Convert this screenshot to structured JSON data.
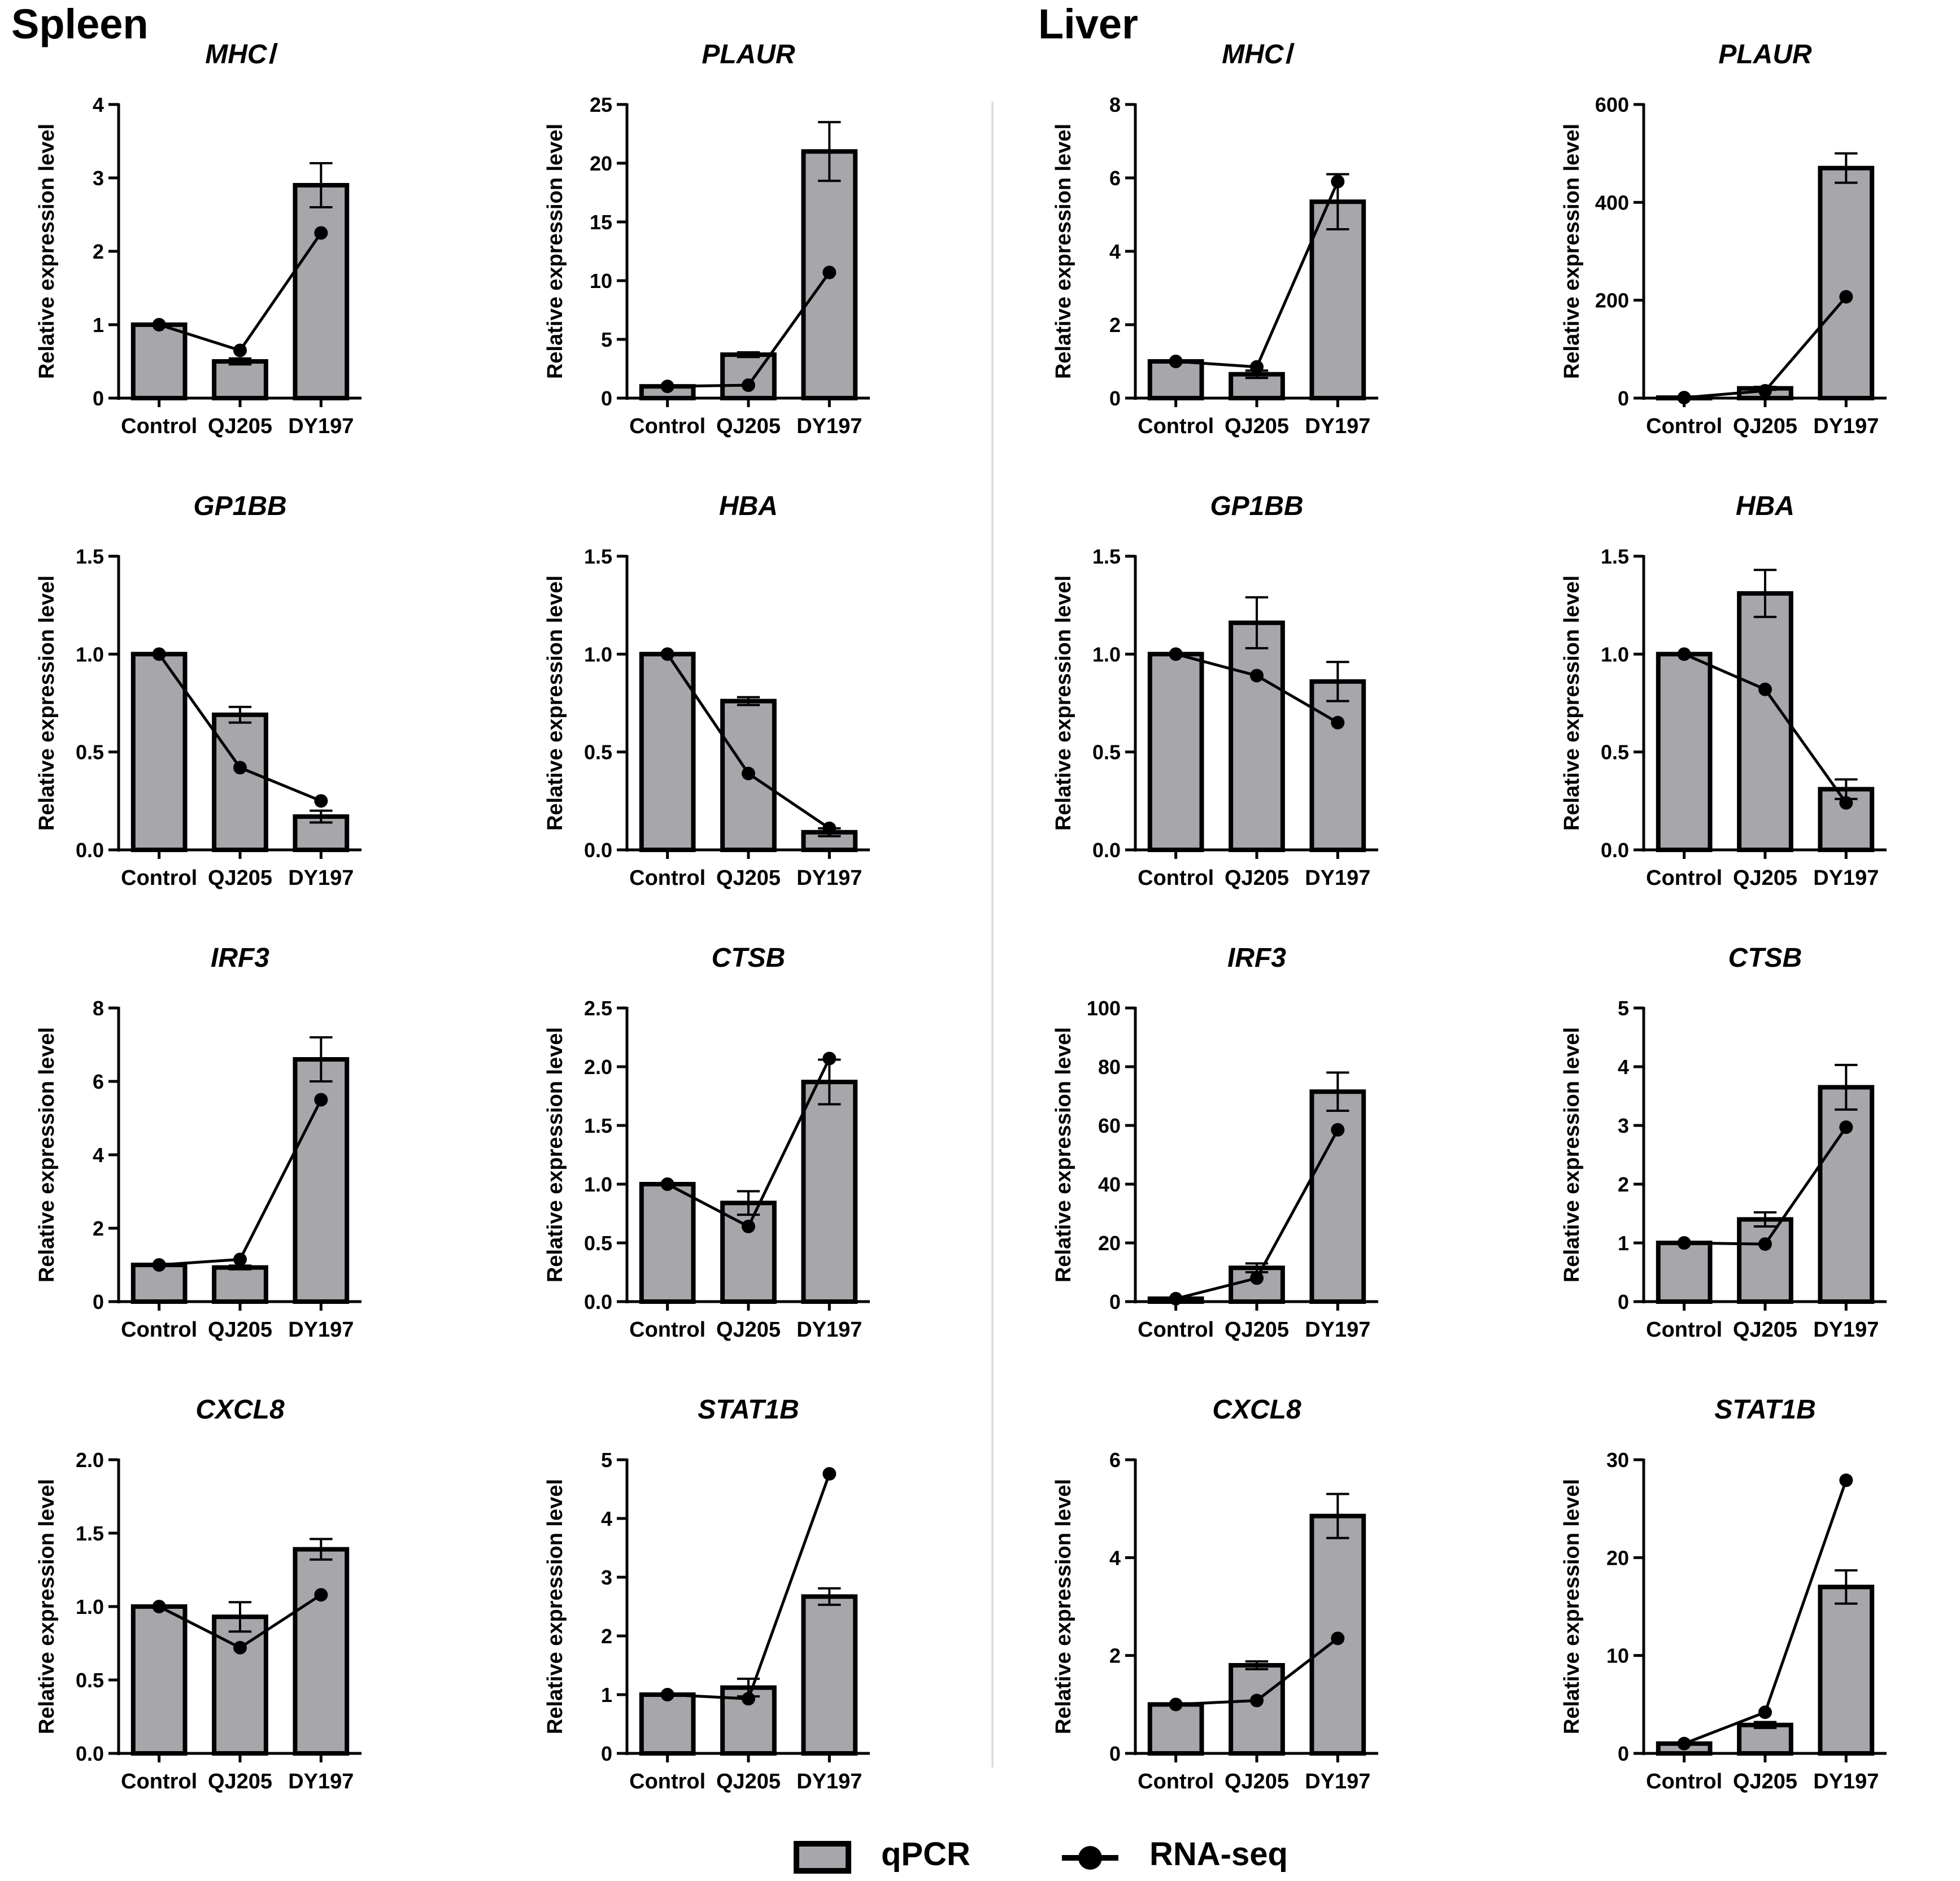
{
  "sections": [
    {
      "label": "Spleen"
    },
    {
      "label": "Liver"
    }
  ],
  "legend": {
    "qpcr_label": "qPCR",
    "rnaseq_label": "RNA-seq"
  },
  "colors": {
    "bar_fill": "#a6a6ab",
    "bar_stroke": "#000000",
    "line": "#000000",
    "text": "#000000",
    "divider": "#d0d0d0"
  },
  "chart_data": [
    {
      "type": "bar",
      "section": "Spleen",
      "title": "MHCⅠ",
      "ylabel": "Relative expression level",
      "categories": [
        "Control",
        "QJ205",
        "DY197"
      ],
      "ylim": [
        0,
        4
      ],
      "yticks": [
        "0",
        "1",
        "2",
        "3",
        "4"
      ],
      "series": [
        {
          "name": "qPCR",
          "type": "bar",
          "values": [
            1.0,
            0.5,
            2.9
          ],
          "errors": [
            0,
            0.04,
            0.3
          ]
        },
        {
          "name": "RNA-seq",
          "type": "line",
          "values": [
            1.0,
            0.65,
            2.25
          ]
        }
      ]
    },
    {
      "type": "bar",
      "section": "Spleen",
      "title": "PLAUR",
      "ylabel": "Relative expression level",
      "categories": [
        "Control",
        "QJ205",
        "DY197"
      ],
      "ylim": [
        0,
        25
      ],
      "yticks": [
        "0",
        "5",
        "10",
        "15",
        "20",
        "25"
      ],
      "series": [
        {
          "name": "qPCR",
          "type": "bar",
          "values": [
            1.0,
            3.7,
            21.0
          ],
          "errors": [
            0,
            0.2,
            2.5
          ]
        },
        {
          "name": "RNA-seq",
          "type": "line",
          "values": [
            1.0,
            1.1,
            10.7
          ]
        }
      ]
    },
    {
      "type": "bar",
      "section": "Liver",
      "title": "MHCⅠ",
      "ylabel": "Relative expression level",
      "categories": [
        "Control",
        "QJ205",
        "DY197"
      ],
      "ylim": [
        0,
        8
      ],
      "yticks": [
        "0",
        "2",
        "4",
        "6",
        "8"
      ],
      "series": [
        {
          "name": "qPCR",
          "type": "bar",
          "values": [
            1.0,
            0.65,
            5.35
          ],
          "errors": [
            0,
            0.1,
            0.75
          ]
        },
        {
          "name": "RNA-seq",
          "type": "line",
          "values": [
            1.0,
            0.85,
            5.9
          ]
        }
      ]
    },
    {
      "type": "bar",
      "section": "Liver",
      "title": "PLAUR",
      "ylabel": "Relative expression level",
      "categories": [
        "Control",
        "QJ205",
        "DY197"
      ],
      "ylim": [
        0,
        600
      ],
      "yticks": [
        "0",
        "200",
        "400",
        "600"
      ],
      "series": [
        {
          "name": "qPCR",
          "type": "bar",
          "values": [
            1.0,
            20,
            470
          ],
          "errors": [
            0,
            3,
            30
          ]
        },
        {
          "name": "RNA-seq",
          "type": "line",
          "values": [
            1.0,
            15,
            207
          ]
        }
      ]
    },
    {
      "type": "bar",
      "section": "Spleen",
      "title": "GP1BB",
      "ylabel": "Relative expression level",
      "categories": [
        "Control",
        "QJ205",
        "DY197"
      ],
      "ylim": [
        0,
        1.5
      ],
      "yticks": [
        "0.0",
        "0.5",
        "1.0",
        "1.5"
      ],
      "series": [
        {
          "name": "qPCR",
          "type": "bar",
          "values": [
            1.0,
            0.69,
            0.17
          ],
          "errors": [
            0,
            0.04,
            0.03
          ]
        },
        {
          "name": "RNA-seq",
          "type": "line",
          "values": [
            1.0,
            0.42,
            0.25
          ]
        }
      ]
    },
    {
      "type": "bar",
      "section": "Spleen",
      "title": "HBA",
      "ylabel": "Relative expression level",
      "categories": [
        "Control",
        "QJ205",
        "DY197"
      ],
      "ylim": [
        0,
        1.5
      ],
      "yticks": [
        "0.0",
        "0.5",
        "1.0",
        "1.5"
      ],
      "series": [
        {
          "name": "qPCR",
          "type": "bar",
          "values": [
            1.0,
            0.76,
            0.09
          ],
          "errors": [
            0,
            0.02,
            0.02
          ]
        },
        {
          "name": "RNA-seq",
          "type": "line",
          "values": [
            1.0,
            0.39,
            0.11
          ]
        }
      ]
    },
    {
      "type": "bar",
      "section": "Liver",
      "title": "GP1BB",
      "ylabel": "Relative expression level",
      "categories": [
        "Control",
        "QJ205",
        "DY197"
      ],
      "ylim": [
        0,
        1.5
      ],
      "yticks": [
        "0.0",
        "0.5",
        "1.0",
        "1.5"
      ],
      "series": [
        {
          "name": "qPCR",
          "type": "bar",
          "values": [
            1.0,
            1.16,
            0.86
          ],
          "errors": [
            0,
            0.13,
            0.1
          ]
        },
        {
          "name": "RNA-seq",
          "type": "line",
          "values": [
            1.0,
            0.89,
            0.65
          ]
        }
      ]
    },
    {
      "type": "bar",
      "section": "Liver",
      "title": "HBA",
      "ylabel": "Relative expression level",
      "categories": [
        "Control",
        "QJ205",
        "DY197"
      ],
      "ylim": [
        0,
        1.5
      ],
      "yticks": [
        "0.0",
        "0.5",
        "1.0",
        "1.5"
      ],
      "series": [
        {
          "name": "qPCR",
          "type": "bar",
          "values": [
            1.0,
            1.31,
            0.31
          ],
          "errors": [
            0,
            0.12,
            0.05
          ]
        },
        {
          "name": "RNA-seq",
          "type": "line",
          "values": [
            1.0,
            0.82,
            0.24
          ]
        }
      ]
    },
    {
      "type": "bar",
      "section": "Spleen",
      "title": "IRF3",
      "ylabel": "Relative expression level",
      "categories": [
        "Control",
        "QJ205",
        "DY197"
      ],
      "ylim": [
        0,
        8
      ],
      "yticks": [
        "0",
        "2",
        "4",
        "6",
        "8"
      ],
      "series": [
        {
          "name": "qPCR",
          "type": "bar",
          "values": [
            1.0,
            0.93,
            6.6
          ],
          "errors": [
            0,
            0.05,
            0.6
          ]
        },
        {
          "name": "RNA-seq",
          "type": "line",
          "values": [
            1.0,
            1.15,
            5.5
          ]
        }
      ]
    },
    {
      "type": "bar",
      "section": "Spleen",
      "title": "CTSB",
      "ylabel": "Relative expression level",
      "categories": [
        "Control",
        "QJ205",
        "DY197"
      ],
      "ylim": [
        0,
        2.5
      ],
      "yticks": [
        "0.0",
        "0.5",
        "1.0",
        "1.5",
        "2.0",
        "2.5"
      ],
      "series": [
        {
          "name": "qPCR",
          "type": "bar",
          "values": [
            1.0,
            0.84,
            1.87
          ],
          "errors": [
            0,
            0.1,
            0.19
          ]
        },
        {
          "name": "RNA-seq",
          "type": "line",
          "values": [
            1.0,
            0.64,
            2.07
          ]
        }
      ]
    },
    {
      "type": "bar",
      "section": "Liver",
      "title": "IRF3",
      "ylabel": "Relative expression level",
      "categories": [
        "Control",
        "QJ205",
        "DY197"
      ],
      "ylim": [
        0,
        100
      ],
      "yticks": [
        "0",
        "20",
        "40",
        "60",
        "80",
        "100"
      ],
      "series": [
        {
          "name": "qPCR",
          "type": "bar",
          "values": [
            1.0,
            11.5,
            71.5
          ],
          "errors": [
            0,
            1.5,
            6.5
          ]
        },
        {
          "name": "RNA-seq",
          "type": "line",
          "values": [
            1.0,
            8.0,
            58.5
          ]
        }
      ]
    },
    {
      "type": "bar",
      "section": "Liver",
      "title": "CTSB",
      "ylabel": "Relative expression level",
      "categories": [
        "Control",
        "QJ205",
        "DY197"
      ],
      "ylim": [
        0,
        5
      ],
      "yticks": [
        "0",
        "1",
        "2",
        "3",
        "4",
        "5"
      ],
      "series": [
        {
          "name": "qPCR",
          "type": "bar",
          "values": [
            1.0,
            1.4,
            3.65
          ],
          "errors": [
            0,
            0.12,
            0.38
          ]
        },
        {
          "name": "RNA-seq",
          "type": "line",
          "values": [
            1.0,
            0.98,
            2.97
          ]
        }
      ]
    },
    {
      "type": "bar",
      "section": "Spleen",
      "title": "CXCL8",
      "ylabel": "Relative expression level",
      "categories": [
        "Control",
        "QJ205",
        "DY197"
      ],
      "ylim": [
        0,
        2.0
      ],
      "yticks": [
        "0.0",
        "0.5",
        "1.0",
        "1.5",
        "2.0"
      ],
      "series": [
        {
          "name": "qPCR",
          "type": "bar",
          "values": [
            1.0,
            0.93,
            1.39
          ],
          "errors": [
            0,
            0.1,
            0.07
          ]
        },
        {
          "name": "RNA-seq",
          "type": "line",
          "values": [
            1.0,
            0.72,
            1.08
          ]
        }
      ]
    },
    {
      "type": "bar",
      "section": "Spleen",
      "title": "STAT1B",
      "ylabel": "Relative expression level",
      "categories": [
        "Control",
        "QJ205",
        "DY197"
      ],
      "ylim": [
        0,
        5
      ],
      "yticks": [
        "0",
        "1",
        "2",
        "3",
        "4",
        "5"
      ],
      "series": [
        {
          "name": "qPCR",
          "type": "bar",
          "values": [
            1.0,
            1.12,
            2.67
          ],
          "errors": [
            0,
            0.15,
            0.14
          ]
        },
        {
          "name": "RNA-seq",
          "type": "line",
          "values": [
            1.0,
            0.93,
            4.76
          ]
        }
      ]
    },
    {
      "type": "bar",
      "section": "Liver",
      "title": "CXCL8",
      "ylabel": "Relative expression level",
      "categories": [
        "Control",
        "QJ205",
        "DY197"
      ],
      "ylim": [
        0,
        6
      ],
      "yticks": [
        "0",
        "2",
        "4",
        "6"
      ],
      "series": [
        {
          "name": "qPCR",
          "type": "bar",
          "values": [
            1.0,
            1.8,
            4.85
          ],
          "errors": [
            0,
            0.08,
            0.45
          ]
        },
        {
          "name": "RNA-seq",
          "type": "line",
          "values": [
            1.0,
            1.08,
            2.35
          ]
        }
      ]
    },
    {
      "type": "bar",
      "section": "Liver",
      "title": "STAT1B",
      "ylabel": "Relative expression level",
      "categories": [
        "Control",
        "QJ205",
        "DY197"
      ],
      "ylim": [
        0,
        30
      ],
      "yticks": [
        "0",
        "10",
        "20",
        "30"
      ],
      "series": [
        {
          "name": "qPCR",
          "type": "bar",
          "values": [
            1.0,
            2.9,
            17.0
          ],
          "errors": [
            0,
            0.3,
            1.7
          ]
        },
        {
          "name": "RNA-seq",
          "type": "line",
          "values": [
            1.0,
            4.2,
            27.9
          ]
        }
      ]
    }
  ]
}
